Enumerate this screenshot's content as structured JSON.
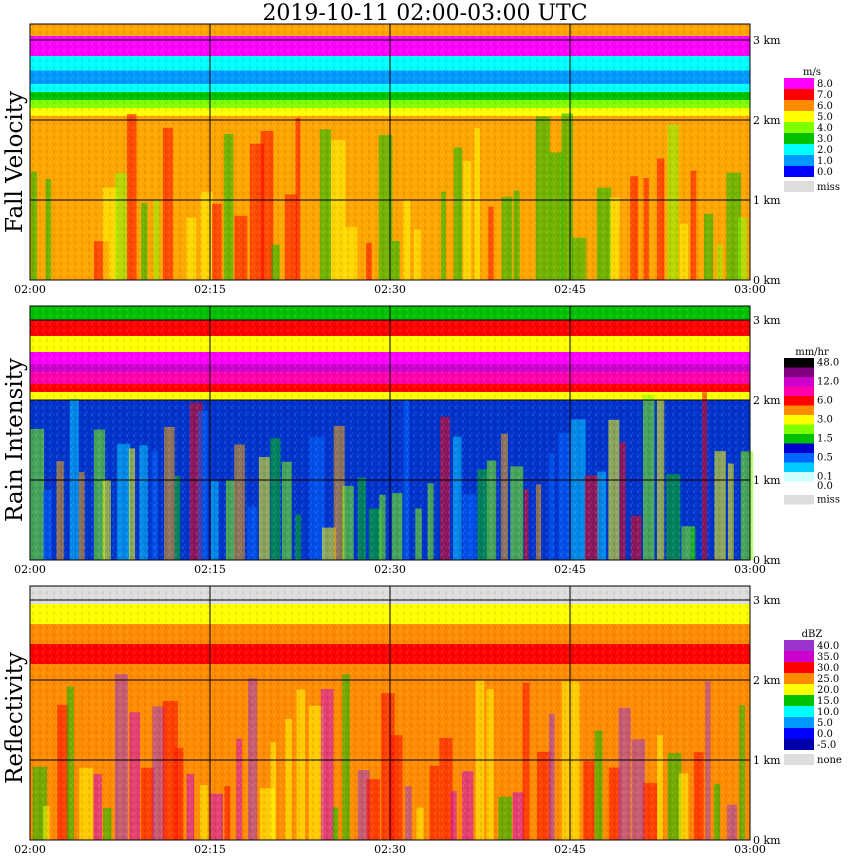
{
  "title": "2019-10-11   02:00-03:00 UTC",
  "chart_data": [
    {
      "type": "heatmap",
      "ylabel": "Fall Velocity",
      "unit": "m/s",
      "x_ticks": [
        "02:00",
        "02:15",
        "02:30",
        "02:45",
        "03:00"
      ],
      "y_ticks": [
        "0 km",
        "1 km",
        "2 km",
        "3 km"
      ],
      "ylim_km": [
        0,
        3.2
      ],
      "legend": [
        {
          "label": "8.0",
          "color": "#ff00ff"
        },
        {
          "label": "7.0",
          "color": "#ff0000"
        },
        {
          "label": "6.0",
          "color": "#ff8c00"
        },
        {
          "label": "5.0",
          "color": "#ffff00"
        },
        {
          "label": "4.0",
          "color": "#7fff00"
        },
        {
          "label": "3.0",
          "color": "#00c000"
        },
        {
          "label": "2.0",
          "color": "#00ffff"
        },
        {
          "label": "1.0",
          "color": "#0099ff"
        },
        {
          "label": "0.0",
          "color": "#0000ff"
        },
        {
          "label": "miss",
          "color": "#dddddd"
        }
      ]
    },
    {
      "type": "heatmap",
      "ylabel": "Rain Intensity",
      "unit": "mm/hr",
      "x_ticks": [
        "02:00",
        "02:15",
        "02:30",
        "02:45",
        "03:00"
      ],
      "y_ticks": [
        "0 km",
        "1 km",
        "2 km",
        "3 km"
      ],
      "ylim_km": [
        0,
        3.2
      ],
      "legend": [
        {
          "label": "48.0",
          "color": "#000000"
        },
        {
          "label": "",
          "color": "#800080"
        },
        {
          "label": "12.0",
          "color": "#cc00cc"
        },
        {
          "label": "",
          "color": "#ff00aa"
        },
        {
          "label": "6.0",
          "color": "#ff0000"
        },
        {
          "label": "",
          "color": "#ff8c00"
        },
        {
          "label": "3.0",
          "color": "#ffff00"
        },
        {
          "label": "",
          "color": "#7fff00"
        },
        {
          "label": "1.5",
          "color": "#00c000"
        },
        {
          "label": "",
          "color": "#0000cc"
        },
        {
          "label": "0.5",
          "color": "#0066ff"
        },
        {
          "label": "",
          "color": "#00ccff"
        },
        {
          "label": "0.1",
          "color": "#ccffff"
        },
        {
          "label": "0.0",
          "color": "#ffffff"
        },
        {
          "label": "miss",
          "color": "#dddddd"
        }
      ]
    },
    {
      "type": "heatmap",
      "ylabel": "Reflectivity",
      "unit": "dBZ",
      "x_ticks": [
        "02:00",
        "02:15",
        "02:30",
        "02:45",
        "03:00"
      ],
      "y_ticks": [
        "0 km",
        "1 km",
        "2 km",
        "3 km"
      ],
      "ylim_km": [
        0,
        3.2
      ],
      "legend": [
        {
          "label": "40.0",
          "color": "#9933cc"
        },
        {
          "label": "35.0",
          "color": "#cc00cc"
        },
        {
          "label": "30.0",
          "color": "#ff0000"
        },
        {
          "label": "25.0",
          "color": "#ff8c00"
        },
        {
          "label": "20.0",
          "color": "#ffff00"
        },
        {
          "label": "15.0",
          "color": "#00c000"
        },
        {
          "label": "10.0",
          "color": "#00ffff"
        },
        {
          "label": "5.0",
          "color": "#0099ff"
        },
        {
          "label": "0.0",
          "color": "#0000ff"
        },
        {
          "label": "-5.0",
          "color": "#0000aa"
        },
        {
          "label": "none",
          "color": "#dddddd"
        }
      ]
    }
  ]
}
